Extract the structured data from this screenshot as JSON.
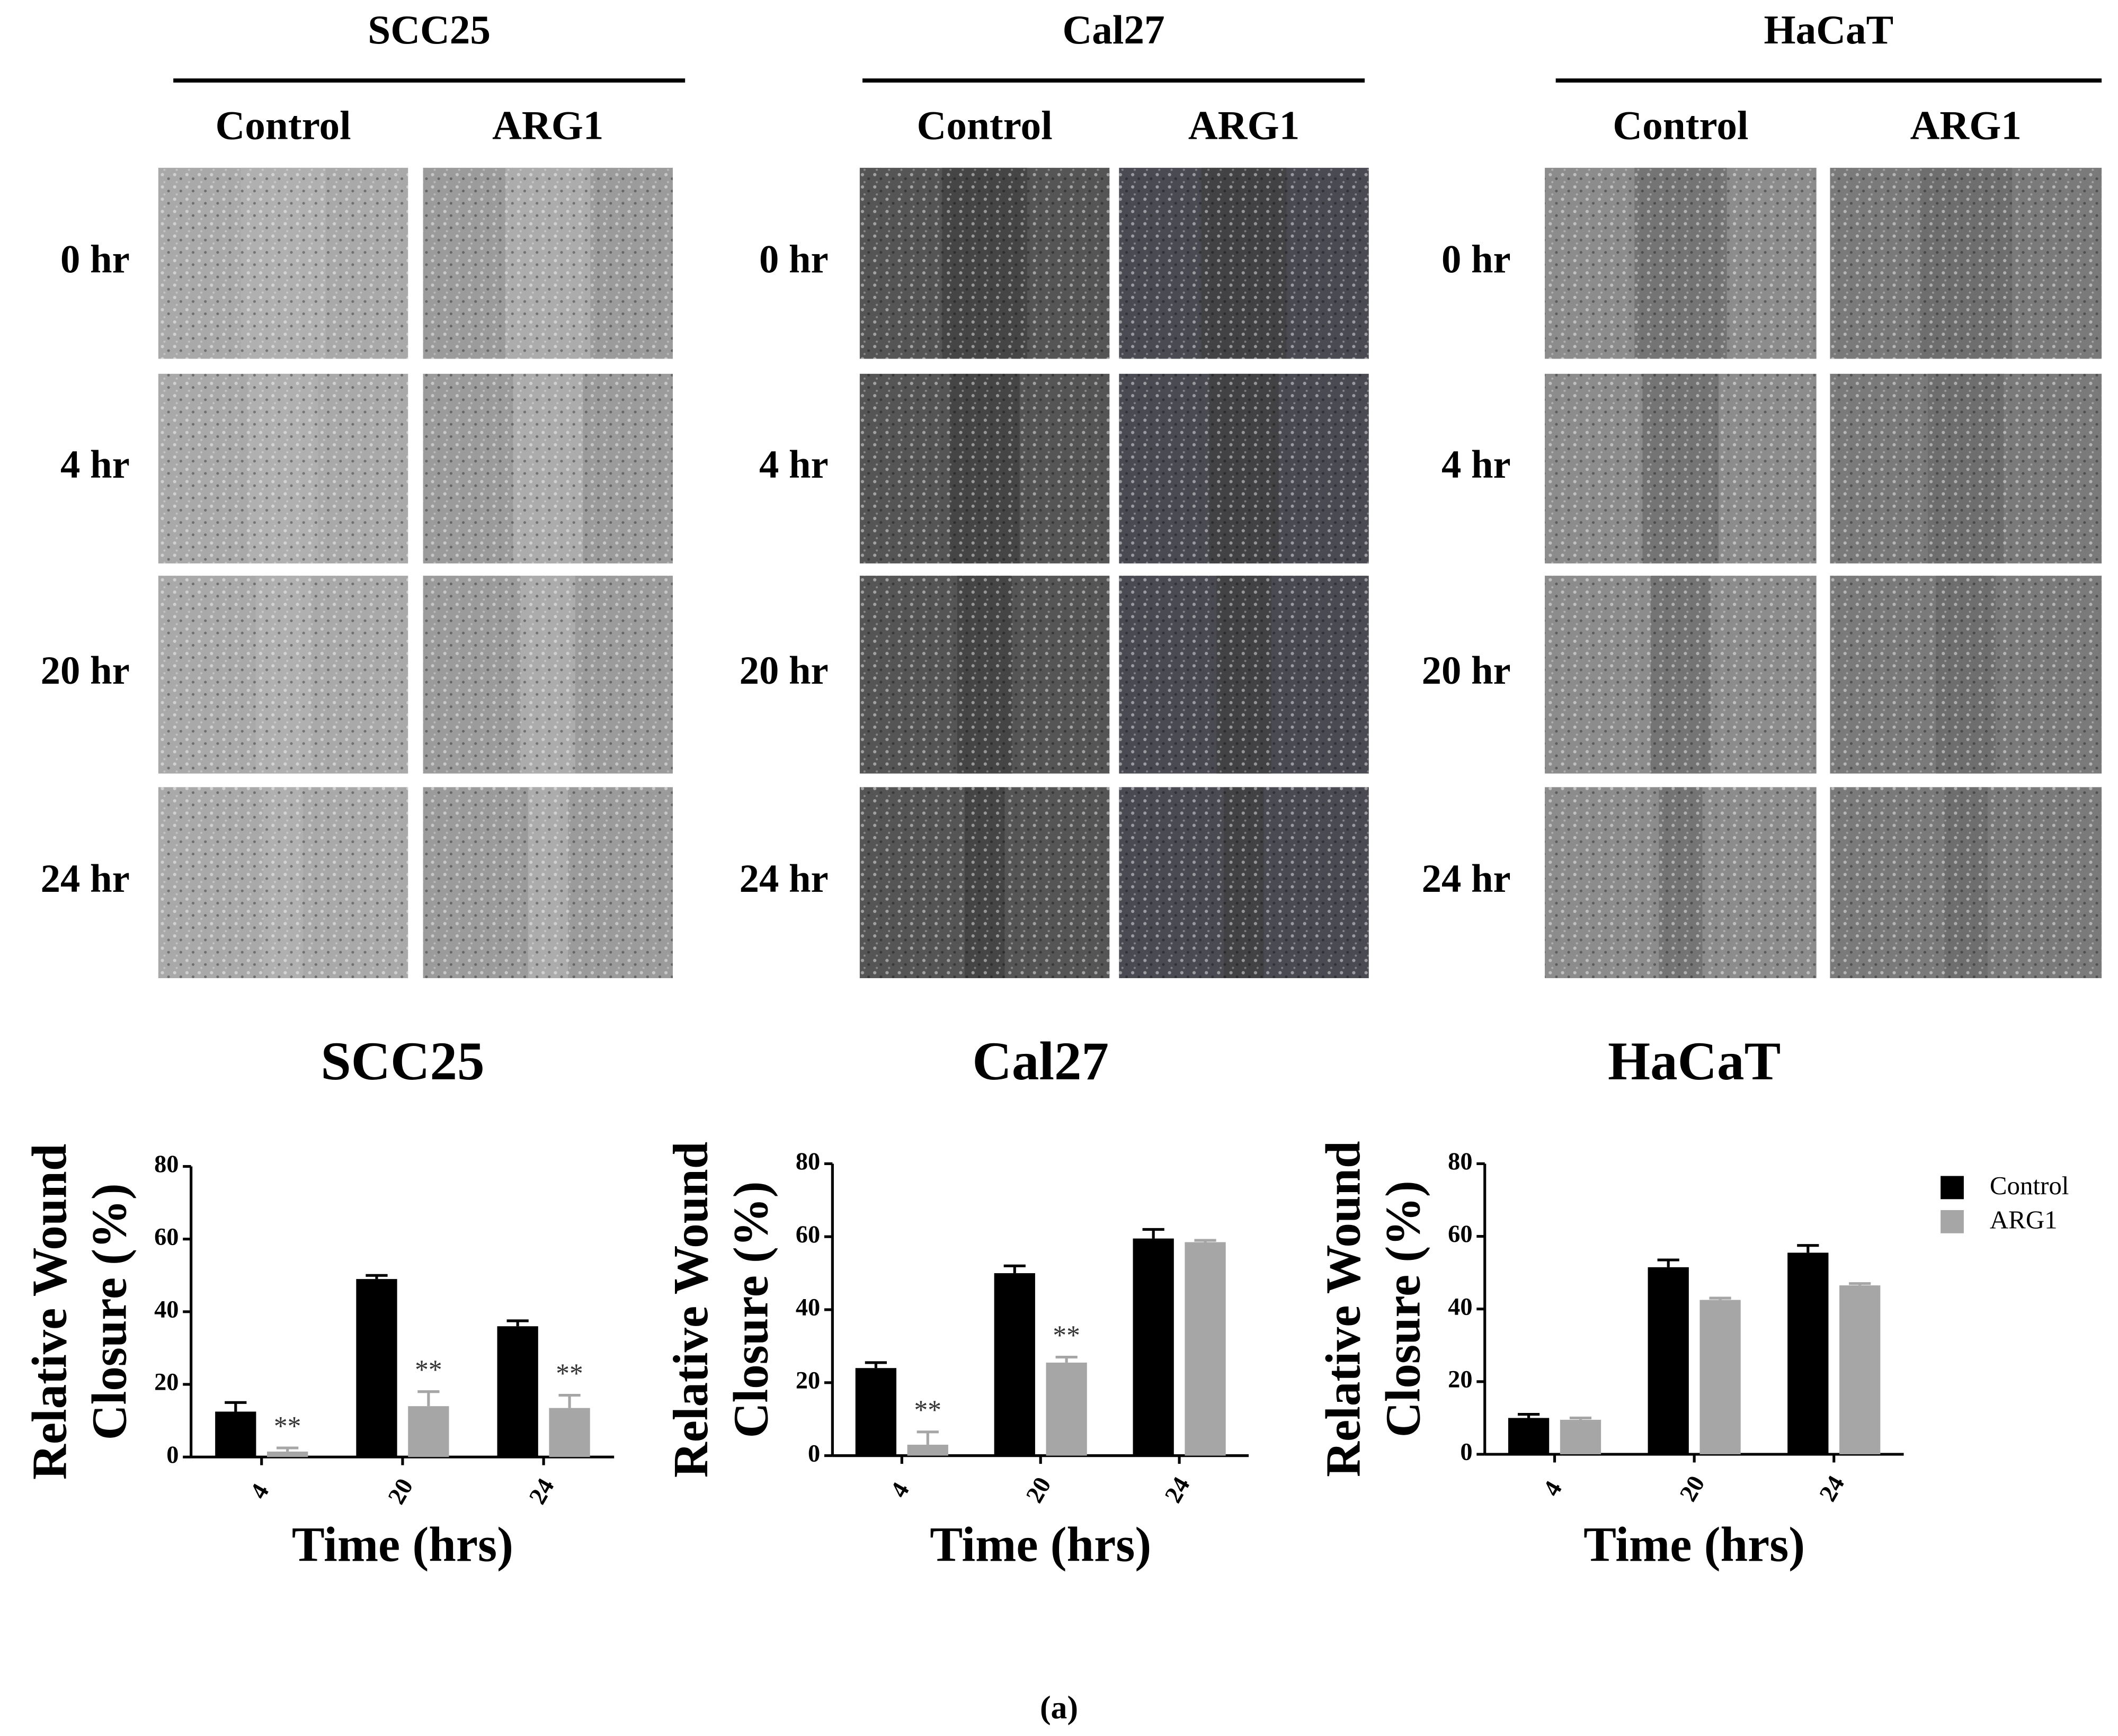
{
  "micrographs": {
    "panels": [
      {
        "title": "SCC25",
        "conditions": [
          "Control",
          "ARG1"
        ]
      },
      {
        "title": "Cal27",
        "conditions": [
          "Control",
          "ARG1"
        ]
      },
      {
        "title": "HaCaT",
        "conditions": [
          "Control",
          "ARG1"
        ]
      }
    ],
    "timepoints": [
      "0 hr",
      "4 hr",
      "20 hr",
      "24 hr"
    ]
  },
  "chart_data": [
    {
      "type": "bar",
      "title": "SCC25",
      "ylabel": [
        "Relative Wound",
        "Closure (%)"
      ],
      "xlabel": "Time (hrs)",
      "categories": [
        "4",
        "20",
        "24"
      ],
      "ylim": [
        0,
        80
      ],
      "yticks": [
        0,
        20,
        40,
        60,
        80
      ],
      "legend": false,
      "series": [
        {
          "name": "Control",
          "color": "#000000",
          "values": [
            12.5,
            49,
            36
          ],
          "errors": [
            2.5,
            1,
            1.5
          ]
        },
        {
          "name": "ARG1",
          "color": "#a6a6a6",
          "values": [
            1.5,
            14,
            13.5
          ],
          "errors": [
            1,
            4,
            3.5
          ],
          "annotations": [
            "**",
            "**",
            "**"
          ]
        }
      ]
    },
    {
      "type": "bar",
      "title": "Cal27",
      "ylabel": [
        "Relative Wound",
        "Closure (%)"
      ],
      "xlabel": "Time (hrs)",
      "categories": [
        "4",
        "20",
        "24"
      ],
      "ylim": [
        0,
        80
      ],
      "yticks": [
        0,
        20,
        40,
        60,
        80
      ],
      "legend": false,
      "series": [
        {
          "name": "Control",
          "color": "#000000",
          "values": [
            24,
            50,
            59.5
          ],
          "errors": [
            1.5,
            2,
            2.5
          ]
        },
        {
          "name": "ARG1",
          "color": "#a6a6a6",
          "values": [
            3,
            25.5,
            58.5
          ],
          "errors": [
            3.5,
            1.5,
            0.5
          ],
          "annotations": [
            "**",
            "**",
            null
          ]
        }
      ]
    },
    {
      "type": "bar",
      "title": "HaCaT",
      "ylabel": [
        "Relative Wound",
        "Closure (%)"
      ],
      "xlabel": "Time (hrs)",
      "categories": [
        "4",
        "20",
        "24"
      ],
      "ylim": [
        0,
        80
      ],
      "yticks": [
        0,
        20,
        40,
        60,
        80
      ],
      "legend": "outside-right",
      "series": [
        {
          "name": "Control",
          "color": "#000000",
          "values": [
            10,
            51.5,
            55.5
          ],
          "errors": [
            1,
            2,
            2
          ]
        },
        {
          "name": "ARG1",
          "color": "#a6a6a6",
          "values": [
            9.5,
            42.5,
            46.5
          ],
          "errors": [
            0.5,
            0.5,
            0.5
          ]
        }
      ]
    }
  ],
  "caption": "(a)"
}
